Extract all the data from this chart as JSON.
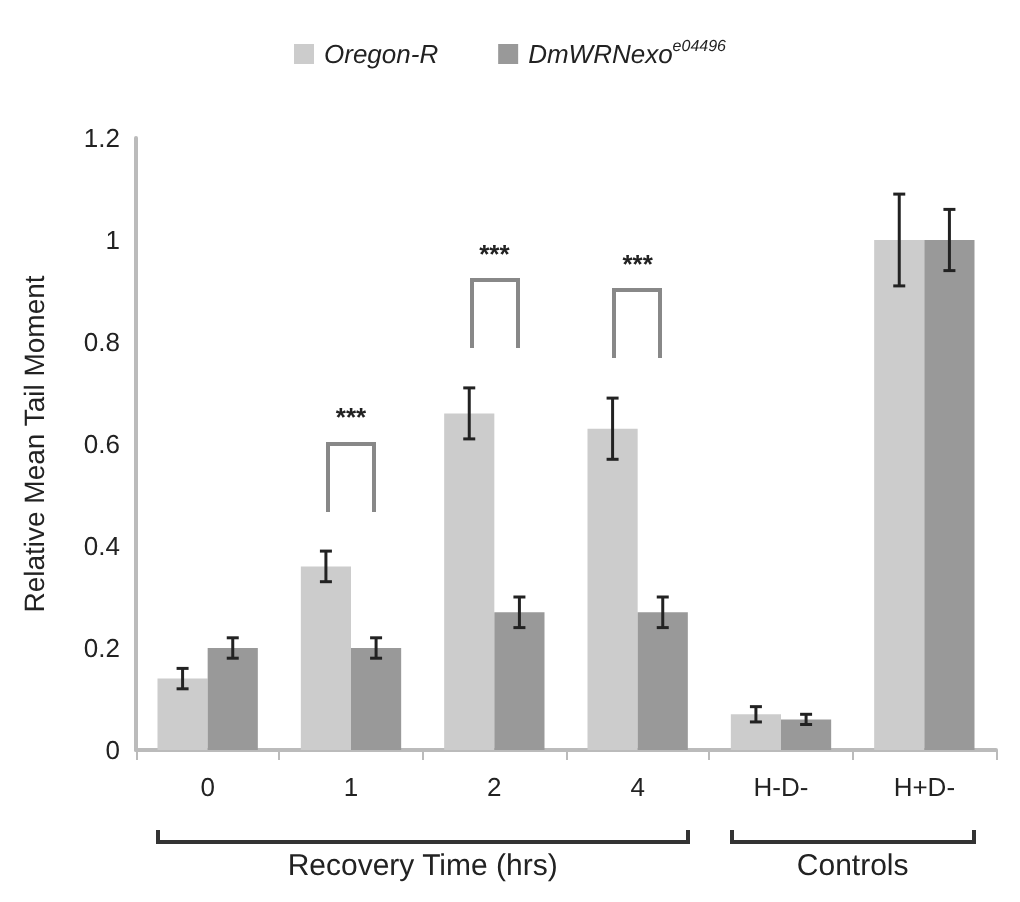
{
  "chart_data": {
    "type": "bar",
    "ylabel": "Relative Mean Tail Moment",
    "categories": [
      "0",
      "1",
      "2",
      "4",
      "H-D-",
      "H+D-"
    ],
    "series": [
      {
        "name": "Oregon-R",
        "color": "#cccccc",
        "values": [
          0.14,
          0.36,
          0.66,
          0.63,
          0.07,
          1.0
        ],
        "errors": [
          0.02,
          0.03,
          0.05,
          0.06,
          0.015,
          0.09
        ]
      },
      {
        "name": "DmWRNexo$^{e04496}$",
        "color": "#999999",
        "values": [
          0.2,
          0.2,
          0.27,
          0.27,
          0.06,
          1.0
        ],
        "errors": [
          0.02,
          0.02,
          0.03,
          0.03,
          0.01,
          0.06
        ]
      }
    ],
    "ylim": [
      0,
      1.2
    ],
    "yticks": [
      0,
      0.2,
      0.4,
      0.6,
      0.8,
      1,
      1.2
    ],
    "annotations": [
      "***",
      "***",
      "***",
      "Recovery Time (hrs)",
      "Controls"
    ],
    "grid": false,
    "legend": "top"
  }
}
